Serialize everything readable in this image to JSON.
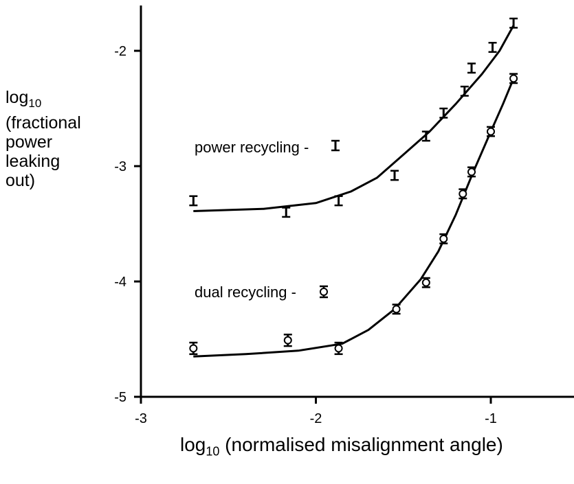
{
  "chart_data": {
    "type": "scatter",
    "xlabel_main": "log",
    "xlabel_sub": "10",
    "xlabel_rest": " (normalised misalignment angle)",
    "ylabel_main": "log",
    "ylabel_sub": "10",
    "ylabel_lines": [
      "(fractional",
      "power",
      "leaking",
      "out)"
    ],
    "xlim": [
      -3,
      -0.5
    ],
    "ylim": [
      -5,
      -1.6
    ],
    "x_ticks": [
      {
        "value": -3,
        "label": "-3"
      },
      {
        "value": -2,
        "label": "-2"
      },
      {
        "value": -1,
        "label": "-1"
      }
    ],
    "y_ticks": [
      {
        "value": -5,
        "label": "-5"
      },
      {
        "value": -4,
        "label": "-4"
      },
      {
        "value": -3,
        "label": "-3"
      },
      {
        "value": -2,
        "label": "-2"
      }
    ],
    "series": [
      {
        "name": "power recycling -",
        "marker": "bar",
        "points": [
          {
            "x": -2.7,
            "y": -3.3,
            "err": 0.04
          },
          {
            "x": -2.17,
            "y": -3.4,
            "err": 0.04
          },
          {
            "x": -1.87,
            "y": -3.3,
            "err": 0.04
          },
          {
            "x": -1.55,
            "y": -3.08,
            "err": 0.04
          },
          {
            "x": -1.37,
            "y": -2.74,
            "err": 0.04
          },
          {
            "x": -1.27,
            "y": -2.54,
            "err": 0.04
          },
          {
            "x": -1.15,
            "y": -2.35,
            "err": 0.04
          },
          {
            "x": -1.11,
            "y": -2.15,
            "err": 0.04
          },
          {
            "x": -0.99,
            "y": -1.97,
            "err": 0.04
          },
          {
            "x": -0.87,
            "y": -1.76,
            "err": 0.04
          }
        ],
        "fit": [
          {
            "x": -2.7,
            "y": -3.39
          },
          {
            "x": -2.3,
            "y": -3.37
          },
          {
            "x": -2.0,
            "y": -3.32
          },
          {
            "x": -1.8,
            "y": -3.22
          },
          {
            "x": -1.65,
            "y": -3.1
          },
          {
            "x": -1.5,
            "y": -2.9
          },
          {
            "x": -1.35,
            "y": -2.7
          },
          {
            "x": -1.2,
            "y": -2.46
          },
          {
            "x": -1.05,
            "y": -2.2
          },
          {
            "x": -0.95,
            "y": -2.0
          },
          {
            "x": -0.87,
            "y": -1.78
          }
        ]
      },
      {
        "name": "dual recycling -",
        "marker": "circle",
        "points": [
          {
            "x": -2.7,
            "y": -4.58,
            "err": 0.05
          },
          {
            "x": -2.16,
            "y": -4.51,
            "err": 0.05
          },
          {
            "x": -1.87,
            "y": -4.58,
            "err": 0.05
          },
          {
            "x": -1.54,
            "y": -4.24,
            "err": 0.04
          },
          {
            "x": -1.37,
            "y": -4.01,
            "err": 0.04
          },
          {
            "x": -1.27,
            "y": -3.63,
            "err": 0.04
          },
          {
            "x": -1.16,
            "y": -3.24,
            "err": 0.04
          },
          {
            "x": -1.11,
            "y": -3.05,
            "err": 0.04
          },
          {
            "x": -1.0,
            "y": -2.7,
            "err": 0.04
          },
          {
            "x": -0.87,
            "y": -2.24,
            "err": 0.04
          }
        ],
        "fit": [
          {
            "x": -2.7,
            "y": -4.65
          },
          {
            "x": -2.4,
            "y": -4.63
          },
          {
            "x": -2.1,
            "y": -4.6
          },
          {
            "x": -1.85,
            "y": -4.54
          },
          {
            "x": -1.7,
            "y": -4.42
          },
          {
            "x": -1.55,
            "y": -4.24
          },
          {
            "x": -1.4,
            "y": -3.98
          },
          {
            "x": -1.3,
            "y": -3.74
          },
          {
            "x": -1.2,
            "y": -3.42
          },
          {
            "x": -1.1,
            "y": -3.05
          },
          {
            "x": -1.0,
            "y": -2.7
          },
          {
            "x": -0.93,
            "y": -2.46
          },
          {
            "x": -0.87,
            "y": -2.24
          }
        ]
      }
    ],
    "grid": false,
    "legend_position": "inline"
  }
}
